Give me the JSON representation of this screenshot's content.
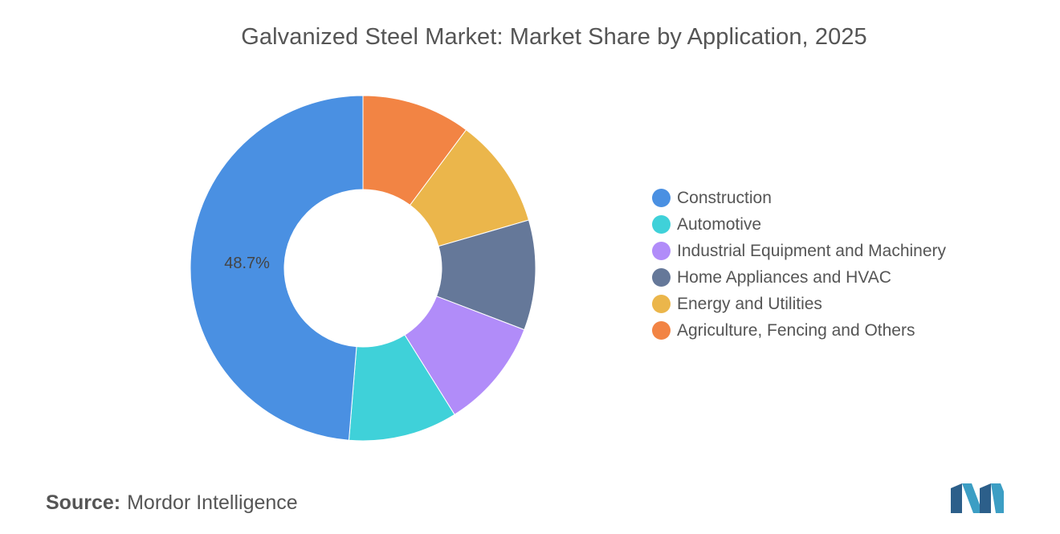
{
  "title": "Galvanized Steel Market: Market Share by Application, 2025",
  "source": {
    "prefix": "Source:",
    "name": "Mordor Intelligence"
  },
  "logo": {
    "icon": "mordor-intelligence-logo-icon",
    "colors": [
      "#3c9ec4",
      "#2c5f8a"
    ]
  },
  "chart_data": {
    "type": "pie",
    "donut": true,
    "title": "Galvanized Steel Market: Market Share by Application, 2025",
    "legend_position": "right",
    "start": "12 o'clock, clockwise",
    "slices": [
      {
        "label": "Agriculture, Fencing and Others",
        "value": 10.2,
        "color": "#f28444"
      },
      {
        "label": "Energy and Utilities",
        "value": 10.3,
        "color": "#ebb64b"
      },
      {
        "label": "Home Appliances and HVAC",
        "value": 10.3,
        "color": "#657899"
      },
      {
        "label": "Industrial Equipment and Machinery",
        "value": 10.3,
        "color": "#b18cf9"
      },
      {
        "label": "Automotive",
        "value": 10.2,
        "color": "#3fd1d9"
      },
      {
        "label": "Construction",
        "value": 48.7,
        "color": "#4a90e2",
        "data_label": "48.7%"
      }
    ],
    "legend": [
      {
        "label": "Construction",
        "color": "#4a90e2"
      },
      {
        "label": "Automotive",
        "color": "#3fd1d9"
      },
      {
        "label": "Industrial Equipment and Machinery",
        "color": "#b18cf9"
      },
      {
        "label": "Home Appliances and HVAC",
        "color": "#657899"
      },
      {
        "label": "Energy and Utilities",
        "color": "#ebb64b"
      },
      {
        "label": "Agriculture, Fencing and Others",
        "color": "#f28444"
      }
    ]
  }
}
